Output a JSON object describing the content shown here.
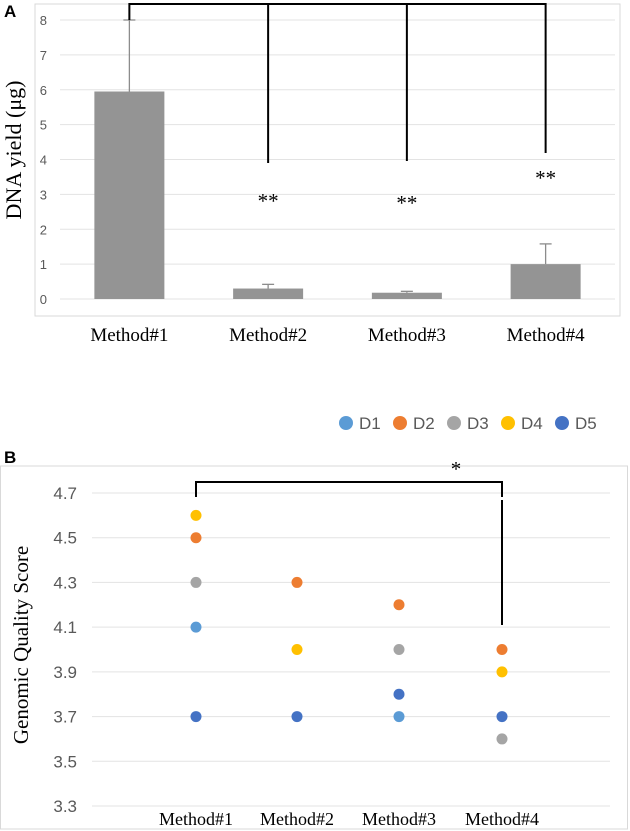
{
  "chart_data": [
    {
      "panel": "A",
      "type": "bar",
      "categories": [
        "Method#1",
        "Method#2",
        "Method#3",
        "Method#4"
      ],
      "values": [
        5.95,
        0.3,
        0.18,
        1.0
      ],
      "error_upper": [
        2.05,
        0.12,
        0.04,
        0.58
      ],
      "ylabel": "DNA yield (μg)",
      "ylim": [
        0,
        8
      ],
      "yticks": [
        "0",
        "1",
        "2",
        "3",
        "4",
        "5",
        "6",
        "7",
        "8"
      ],
      "bar_color": "#949494",
      "significance": [
        "**",
        "**",
        "**"
      ]
    },
    {
      "panel": "B",
      "type": "scatter",
      "categories": [
        "Method#1",
        "Method#2",
        "Method#3",
        "Method#4"
      ],
      "ylabel": "Genomic Quality Score",
      "ylim": [
        3.3,
        4.7
      ],
      "yticks": [
        "3.3",
        "3.5",
        "3.7",
        "3.9",
        "4.1",
        "4.3",
        "4.5",
        "4.7"
      ],
      "series": [
        {
          "name": "D1",
          "color": "#5b9bd5",
          "values": [
            4.1,
            null,
            3.7,
            null
          ]
        },
        {
          "name": "D2",
          "color": "#ed7d31",
          "values": [
            4.5,
            4.3,
            4.2,
            4.0
          ]
        },
        {
          "name": "D3",
          "color": "#a5a5a5",
          "values": [
            4.3,
            null,
            4.0,
            3.6
          ]
        },
        {
          "name": "D4",
          "color": "#ffc000",
          "values": [
            4.6,
            4.0,
            null,
            3.9
          ]
        },
        {
          "name": "D5",
          "color": "#4472c4",
          "values": [
            3.7,
            3.7,
            3.8,
            3.7
          ]
        }
      ],
      "significance": [
        "*"
      ]
    }
  ]
}
